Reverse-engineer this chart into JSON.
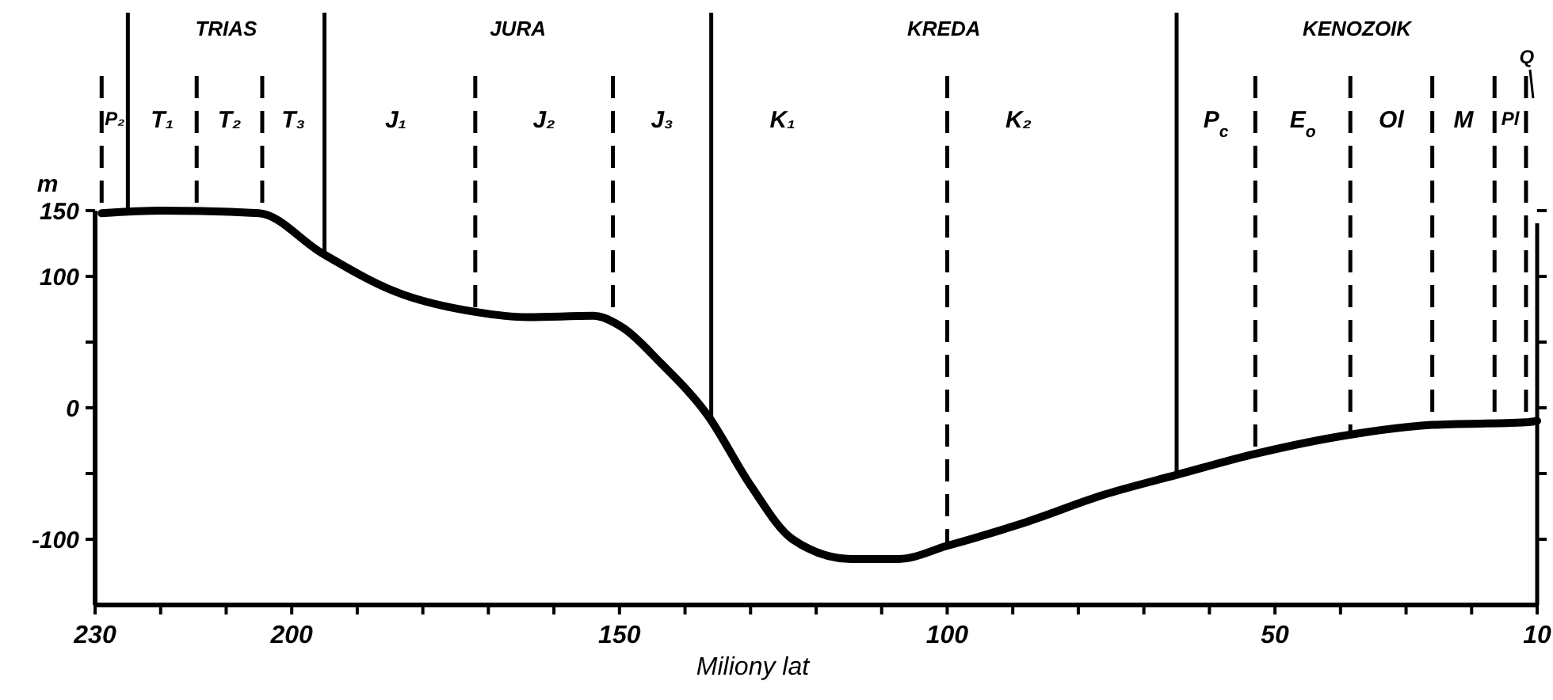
{
  "chart_data": {
    "type": "line",
    "xlabel": "Miliony lat",
    "ylabel": "m",
    "x": [
      229,
      220,
      205,
      195.5,
      184,
      172,
      164,
      154,
      149.5,
      143.7,
      136.5,
      130,
      123.6,
      114.7,
      107.4,
      100,
      88,
      76,
      65,
      53,
      38,
      26,
      11.7,
      10
    ],
    "series": [
      {
        "color": "#000000",
        "values": [
          148,
          150,
          148,
          118,
          88,
          73,
          69,
          70,
          61,
          34,
          -6,
          -59,
          -100,
          -115,
          -115,
          -105,
          -87,
          -66,
          -51,
          -35,
          -20,
          -13,
          -11,
          -10
        ]
      }
    ],
    "xlim": [
      230,
      10
    ],
    "xticks": [
      230,
      {
        "value": 220,
        "label": null
      },
      {
        "value": 210,
        "label": null
      },
      200,
      {
        "value": 190,
        "label": null
      },
      {
        "value": 180,
        "label": null
      },
      {
        "value": 170,
        "label": null
      },
      {
        "value": 160,
        "label": null
      },
      150,
      {
        "value": 140,
        "label": null
      },
      {
        "value": 130,
        "label": null
      },
      {
        "value": 120,
        "label": null
      },
      {
        "value": 110,
        "label": null
      },
      100,
      {
        "value": 90,
        "label": null
      },
      {
        "value": 80,
        "label": null
      },
      {
        "value": 70,
        "label": null
      },
      {
        "value": 60,
        "label": null
      },
      50,
      {
        "value": 40,
        "label": null
      },
      {
        "value": 30,
        "label": null
      },
      {
        "value": 20,
        "label": null
      },
      10
    ],
    "ylim": [
      -150,
      150
    ],
    "yticks": [
      -100,
      {
        "value": -50,
        "label": null
      },
      0,
      {
        "value": 50,
        "label": null
      },
      100,
      150
    ],
    "grid": false,
    "marker": "none",
    "line_style": "solid",
    "ref_lines": [
      {
        "axis": "x",
        "value": 229,
        "line_style": "dashed",
        "label": "P₂"
      },
      {
        "axis": "x",
        "value": 225,
        "line_style": "solid",
        "label": "T₁"
      },
      {
        "axis": "x",
        "value": 214.5,
        "line_style": "dashed",
        "label": "T₂"
      },
      {
        "axis": "x",
        "value": 204.5,
        "line_style": "dashed",
        "label": "T₃"
      },
      {
        "axis": "x",
        "value": 195,
        "line_style": "solid",
        "label": "J₁"
      },
      {
        "axis": "x",
        "value": 172,
        "line_style": "dashed",
        "label": "J₂"
      },
      {
        "axis": "x",
        "value": 151,
        "line_style": "dashed",
        "label": "J₃"
      },
      {
        "axis": "x",
        "value": 136,
        "line_style": "solid",
        "label": "K₁"
      },
      {
        "axis": "x",
        "value": 100,
        "line_style": "dashed",
        "label": "K₂"
      },
      {
        "axis": "x",
        "value": 65,
        "line_style": "solid",
        "label": "P$_{c}$"
      },
      {
        "axis": "x",
        "value": 53,
        "line_style": "dashed",
        "label": "E$_{o}$"
      },
      {
        "axis": "x",
        "value": 38.5,
        "line_style": "dashed",
        "label": "Ol"
      },
      {
        "axis": "x",
        "value": 26,
        "line_style": "dashed",
        "label": "M"
      },
      {
        "axis": "x",
        "value": 16.5,
        "line_style": "dashed",
        "label": "Pl"
      },
      {
        "axis": "x",
        "value": 11.7,
        "line_style": "dashed",
        "label": "Q"
      }
    ],
    "annotations": [
      "TRIAS",
      "JURA",
      "KREDA",
      "KENOZOIK"
    ]
  }
}
